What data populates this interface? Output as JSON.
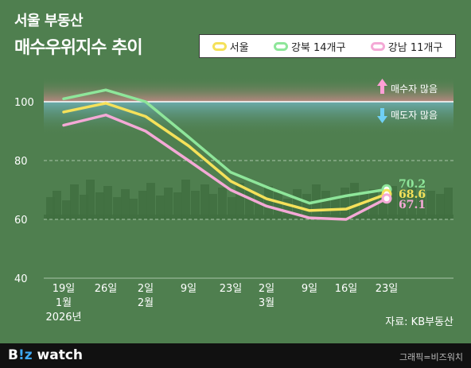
{
  "header": {
    "title_line1": "서울 부동산",
    "title_line2": "매수우위지수 추이"
  },
  "legend": {
    "items": [
      {
        "label": "서울",
        "color": "#f5e15a"
      },
      {
        "label": "강북 14개구",
        "color": "#8ee69a"
      },
      {
        "label": "강남 11개구",
        "color": "#f4a9d6"
      }
    ]
  },
  "zones": {
    "buyers_more": "매수자 많음",
    "sellers_more": "매도자 많음"
  },
  "source": "자료: KB부동산",
  "footer": {
    "brand_b": "B",
    "brand_mark": "!z",
    "brand_rest": " watch",
    "credit": "그래픽=비즈워치"
  },
  "chart_data": {
    "type": "line",
    "x_labels": [
      [
        "19일",
        "1월",
        "2026년"
      ],
      [
        "26일"
      ],
      [
        "2일",
        "2월"
      ],
      [
        "9일"
      ],
      [
        "23일"
      ],
      [
        "2일",
        "3월"
      ],
      [
        "9일"
      ],
      [
        "16일"
      ],
      [
        "23일"
      ]
    ],
    "ylim": [
      40,
      110
    ],
    "y_ticks": [
      40,
      60,
      80,
      100
    ],
    "reference_line": 100,
    "series": [
      {
        "name": "강북 14개구",
        "color": "#8ee69a",
        "values": [
          101,
          104,
          100,
          88,
          76,
          71,
          65.5,
          68,
          70.2
        ]
      },
      {
        "name": "서울",
        "color": "#f5e15a",
        "values": [
          96.5,
          99.5,
          95,
          85,
          73,
          67,
          63,
          63.5,
          68.6
        ]
      },
      {
        "name": "강남 11개구",
        "color": "#f4a9d6",
        "values": [
          92,
          95.5,
          90,
          80,
          70,
          64.5,
          60.5,
          60,
          67.1
        ]
      }
    ],
    "end_labels": [
      {
        "series": "강북 14개구",
        "text": "70.2",
        "color": "#8ee69a"
      },
      {
        "series": "서울",
        "text": "68.6",
        "color": "#f5e15a"
      },
      {
        "series": "강남 11개구",
        "text": "67.1",
        "color": "#f4a9d6"
      }
    ]
  }
}
